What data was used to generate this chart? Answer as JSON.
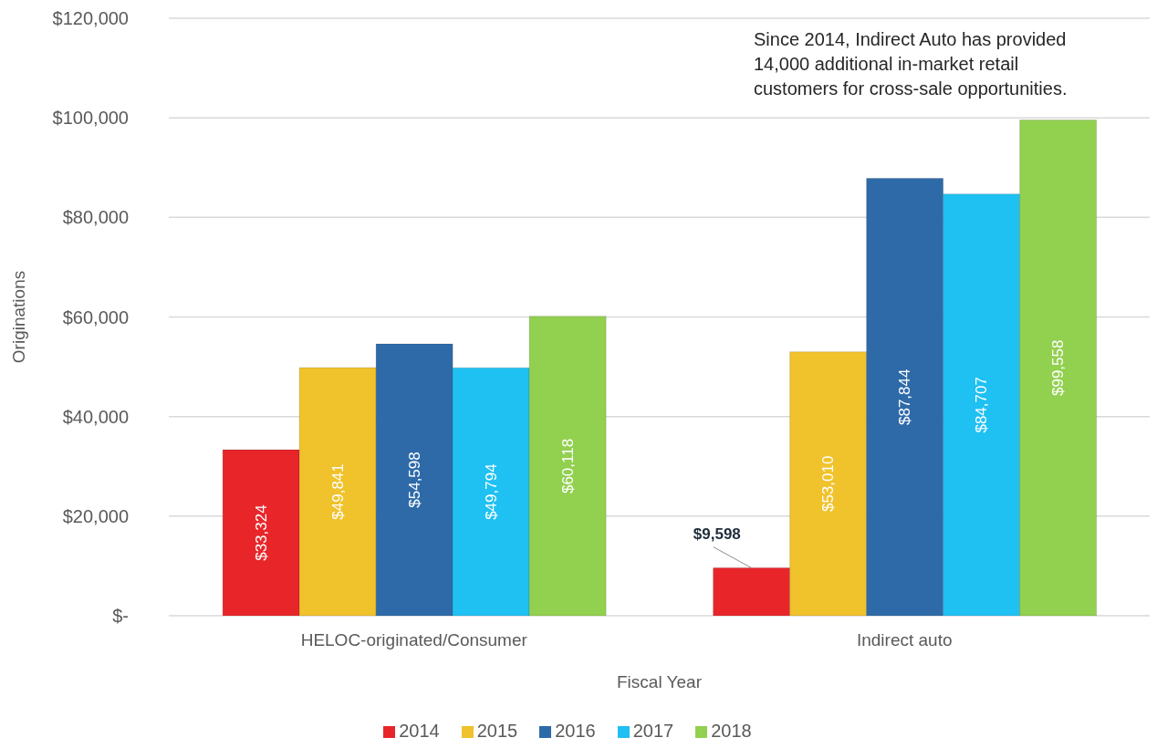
{
  "chart_data": {
    "type": "bar",
    "xlabel": "Fiscal Year",
    "ylabel": "Originations",
    "annotations": [
      "Since 2014, Indirect Auto has provided 14,000 additional in-market retail customers for cross-sale opportunities."
    ],
    "categories": [
      "HELOC-originated/Consumer",
      "Indirect auto"
    ],
    "series": [
      {
        "name": "2014",
        "color": "#e8262a",
        "values": [
          33324,
          9598
        ],
        "value_labels": [
          "$33,324",
          "$9,598"
        ]
      },
      {
        "name": "2015",
        "color": "#f0c22c",
        "values": [
          49841,
          53010
        ],
        "value_labels": [
          "$49,841",
          "$53,010"
        ]
      },
      {
        "name": "2016",
        "color": "#2e6aa8",
        "values": [
          54598,
          87844
        ],
        "value_labels": [
          "$54,598",
          "$87,844"
        ]
      },
      {
        "name": "2017",
        "color": "#1fc0f2",
        "values": [
          49794,
          84707
        ],
        "value_labels": [
          "$49,794",
          "$84,707"
        ]
      },
      {
        "name": "2018",
        "color": "#92d050",
        "values": [
          60118,
          99558
        ],
        "value_labels": [
          "$60,118",
          "$99,558"
        ]
      }
    ],
    "ylim": [
      0,
      120000
    ],
    "yticks": [
      {
        "value": 0,
        "label": "$-"
      },
      {
        "value": 20000,
        "label": "$20,000"
      },
      {
        "value": 40000,
        "label": "$40,000"
      },
      {
        "value": 60000,
        "label": "$60,000"
      },
      {
        "value": 80000,
        "label": "$80,000"
      },
      {
        "value": 100000,
        "label": "$100,000"
      },
      {
        "value": 120000,
        "label": "$120,000"
      }
    ],
    "grid": "y",
    "legend": "bottom"
  }
}
